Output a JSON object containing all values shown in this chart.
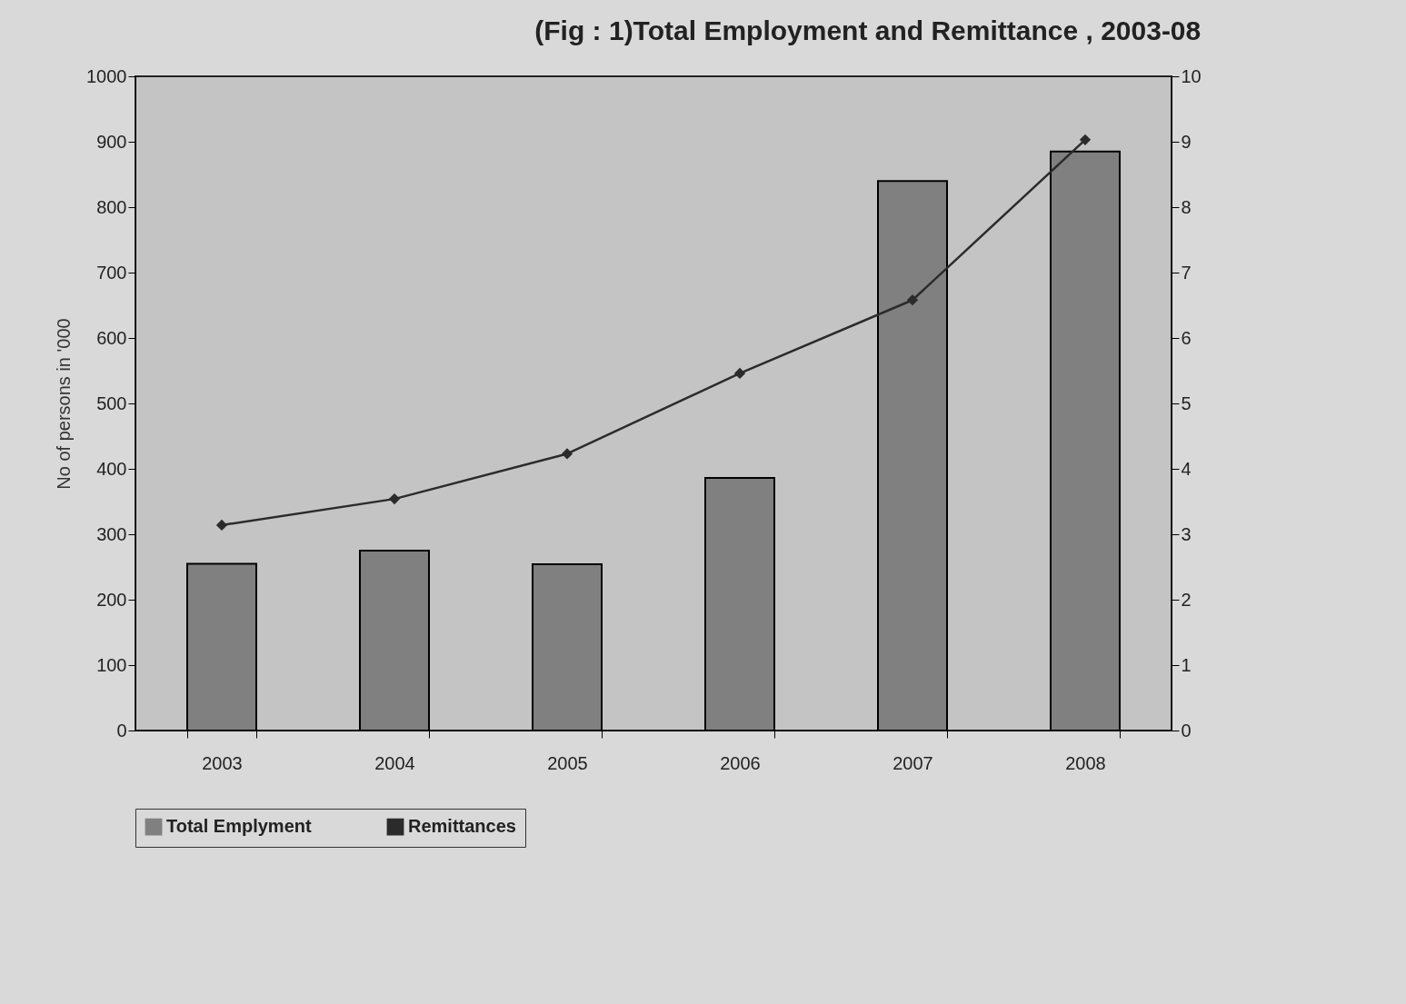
{
  "chart_data": {
    "type": "bar",
    "title": "(Fig : 1)Total Employment and Remittance , 2003-08",
    "ylabel": "No of persons in '000",
    "categories": [
      "2003",
      "2004",
      "2005",
      "2006",
      "2007",
      "2008"
    ],
    "series": [
      {
        "name": "Total Emplyment",
        "color": "#808080",
        "values": [
          255,
          275,
          254,
          386,
          840,
          885
        ]
      },
      {
        "name": "Remittances",
        "type": "line",
        "axis": "y2",
        "color": "#2b2b2b",
        "marker": "diamond",
        "values": [
          3.14,
          3.54,
          4.23,
          5.46,
          6.58,
          9.03
        ]
      }
    ],
    "ylim": [
      0,
      1000
    ],
    "yticks": [
      0,
      100,
      200,
      300,
      400,
      500,
      600,
      700,
      800,
      900,
      1000
    ],
    "y2lim": [
      0,
      10
    ],
    "y2ticks": [
      0,
      1,
      2,
      3,
      4,
      5,
      6,
      7,
      8,
      9,
      10
    ],
    "grid": false,
    "legend": "bottom"
  }
}
